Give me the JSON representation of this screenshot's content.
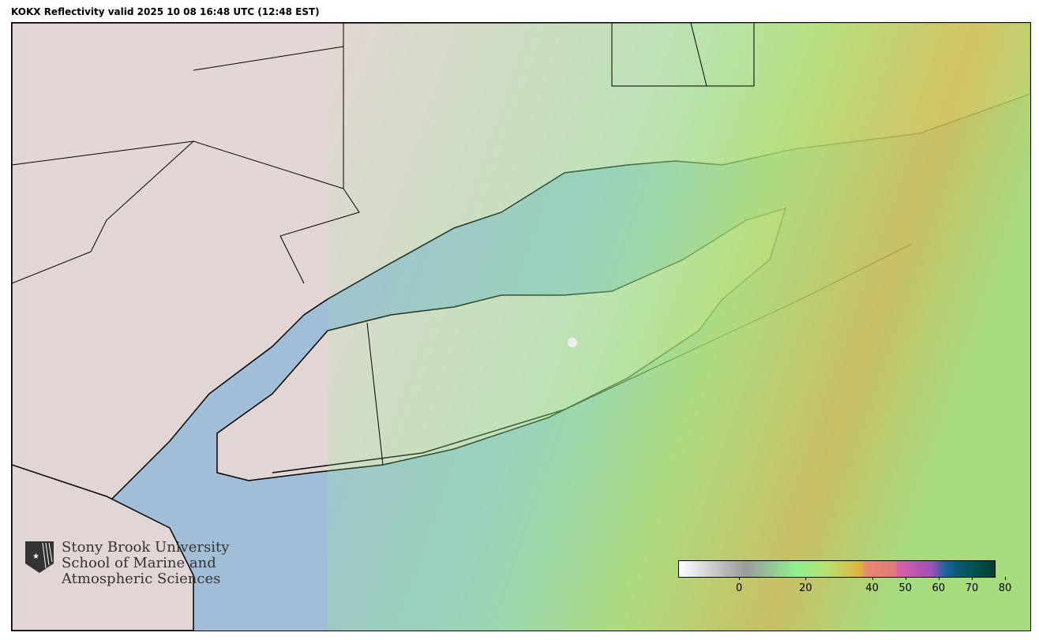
{
  "title": "KOKX Reflectivity valid 2025 10 08 16:48 UTC (12:48 EST)",
  "logo": {
    "line1": "Stony Brook University",
    "line2": "School of Marine and",
    "line3": "Atmospheric Sciences"
  },
  "colorbar": {
    "range": [
      -15,
      80
    ],
    "ticks": [
      "0",
      "20",
      "40",
      "50",
      "60",
      "70",
      "80"
    ],
    "tick_values": [
      0,
      20,
      40,
      50,
      60,
      70,
      80
    ],
    "stops": [
      {
        "value": -15,
        "color": "#ffffff"
      },
      {
        "value": 5,
        "color": "#9a9a9a"
      },
      {
        "value": 20,
        "color": "#8ef08e"
      },
      {
        "value": 30,
        "color": "#b8e070"
      },
      {
        "value": 40,
        "color": "#e0b040"
      },
      {
        "value": 41,
        "color": "#e88a70"
      },
      {
        "value": 50,
        "color": "#e07a78"
      },
      {
        "value": 51,
        "color": "#d860a8"
      },
      {
        "value": 61,
        "color": "#a050b8"
      },
      {
        "value": 65,
        "color": "#2060a0"
      },
      {
        "value": 71,
        "color": "#005860"
      },
      {
        "value": 80,
        "color": "#004030"
      }
    ]
  },
  "colors": {
    "land": "#e2d6d4",
    "water": "#a2bdd8",
    "echo_light": "#8ef08e",
    "echo_moderate": "#d8c050",
    "clutter": "#8a8a8a"
  }
}
